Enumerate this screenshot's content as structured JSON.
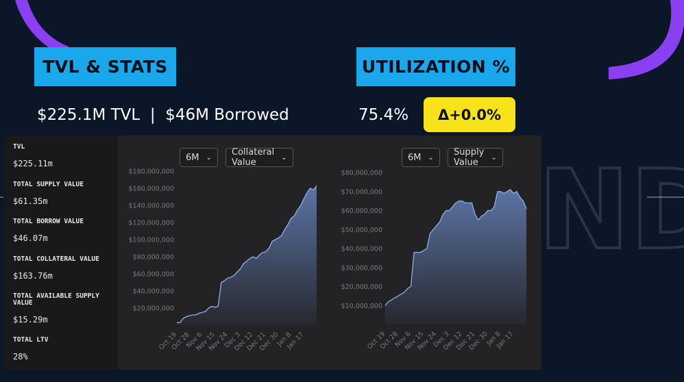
{
  "header": {
    "tvl_title": "TVL & STATS",
    "util_title": "UTILIZATION %",
    "summary": "$225.1M TVL  |  $46M Borrowed",
    "utilization": "75.4%",
    "delta": "Δ+0.0%",
    "watermark": "ND"
  },
  "stats": [
    {
      "label": "TVL",
      "value": "$225.11m"
    },
    {
      "label": "TOTAL SUPPLY VALUE",
      "value": "$61.35m"
    },
    {
      "label": "TOTAL BORROW VALUE",
      "value": "$46.07m"
    },
    {
      "label": "TOTAL COLLATERAL VALUE",
      "value": "$163.76m"
    },
    {
      "label": "TOTAL AVAILABLE SUPPLY VALUE",
      "value": "$15.29m"
    },
    {
      "label": "TOTAL LTV",
      "value": "28%"
    }
  ],
  "chart_data": [
    {
      "type": "area",
      "range": "6M",
      "metric": "Collateral Value",
      "color": "#8fb0f0",
      "categories": [
        "Oct 19",
        null,
        null,
        null,
        "Oct 28",
        null,
        null,
        null,
        "Nov 6",
        null,
        null,
        null,
        "Nov 15",
        null,
        null,
        null,
        "Nov 24",
        null,
        null,
        null,
        "Dec 3",
        null,
        null,
        null,
        "Dec 12",
        null,
        null,
        null,
        "Dec 21",
        null,
        null,
        null,
        "Dec 30",
        null,
        null,
        null,
        "Jan 8",
        null,
        null,
        null,
        "Jan 17",
        null,
        null,
        null,
        null
      ],
      "values": [
        3000000,
        3000000,
        8000000,
        10000000,
        11000000,
        12000000,
        12000000,
        14000000,
        15000000,
        16000000,
        20000000,
        22000000,
        21000000,
        22000000,
        50000000,
        52000000,
        55000000,
        56000000,
        58000000,
        62000000,
        66000000,
        72000000,
        75000000,
        78000000,
        80000000,
        78000000,
        82000000,
        85000000,
        86000000,
        90000000,
        98000000,
        100000000,
        102000000,
        105000000,
        112000000,
        118000000,
        125000000,
        128000000,
        135000000,
        140000000,
        148000000,
        155000000,
        160000000,
        158000000,
        163000000
      ],
      "ylim": [
        0,
        180000000
      ],
      "yticks": [
        {
          "value": 20000000,
          "label": "$20,000,000"
        },
        {
          "value": 40000000,
          "label": "$40,000,000"
        },
        {
          "value": 60000000,
          "label": "$60,000,000"
        },
        {
          "value": 80000000,
          "label": "$80,000,000"
        },
        {
          "value": 100000000,
          "label": "$100,000,000"
        },
        {
          "value": 120000000,
          "label": "$120,000,000"
        },
        {
          "value": 140000000,
          "label": "$140,000,000"
        },
        {
          "value": 160000000,
          "label": "$160,000,000"
        },
        {
          "value": 180000000,
          "label": "$180,000,000"
        }
      ]
    },
    {
      "type": "area",
      "range": "6M",
      "metric": "Supply Value",
      "color": "#8fb0f0",
      "categories": [
        "Oct 19",
        null,
        null,
        null,
        "Oct 28",
        null,
        null,
        null,
        "Nov 6",
        null,
        null,
        null,
        "Nov 15",
        null,
        null,
        null,
        "Nov 24",
        null,
        null,
        null,
        "Dec 3",
        null,
        null,
        null,
        "Dec 12",
        null,
        null,
        null,
        "Dec 21",
        null,
        null,
        null,
        "Dec 30",
        null,
        null,
        null,
        "Jan 8",
        null,
        null,
        null,
        "Jan 17",
        null,
        null,
        null,
        null
      ],
      "values": [
        10000000,
        12000000,
        13000000,
        14000000,
        15000000,
        16000000,
        17000000,
        19000000,
        20000000,
        38000000,
        38000000,
        38000000,
        39000000,
        40000000,
        48000000,
        50000000,
        52000000,
        54000000,
        58000000,
        60000000,
        60000000,
        62000000,
        64000000,
        65000000,
        65000000,
        64000000,
        64000000,
        64000000,
        58000000,
        55000000,
        57000000,
        58000000,
        60000000,
        60000000,
        62000000,
        70000000,
        70000000,
        69000000,
        70000000,
        71000000,
        69000000,
        70000000,
        67000000,
        65000000,
        61000000
      ],
      "ylim": [
        0,
        80000000
      ],
      "yticks": [
        {
          "value": 10000000,
          "label": "$10,000,000"
        },
        {
          "value": 20000000,
          "label": "$20,000,000"
        },
        {
          "value": 30000000,
          "label": "$30,000,000"
        },
        {
          "value": 40000000,
          "label": "$40,000,000"
        },
        {
          "value": 50000000,
          "label": "$50,000,000"
        },
        {
          "value": 60000000,
          "label": "$60,000,000"
        },
        {
          "value": 70000000,
          "label": "$70,000,000"
        },
        {
          "value": 80000000,
          "label": "$80,000,000"
        }
      ]
    }
  ]
}
